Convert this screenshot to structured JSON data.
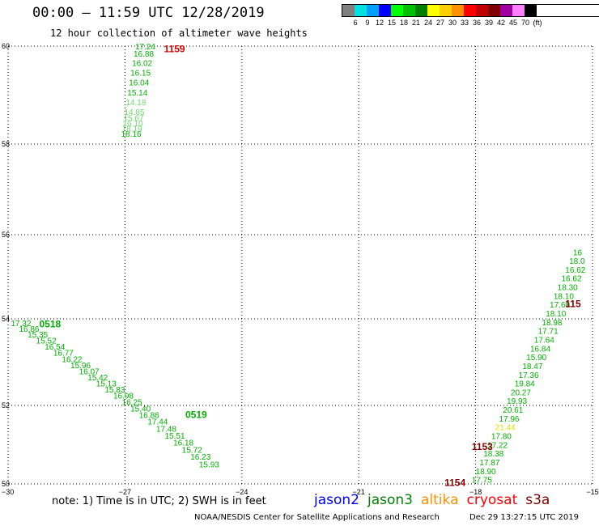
{
  "header": {
    "title": "00:00 – 11:59 UTC 12/28/2019",
    "subtitle": "12 hour collection of altimeter wave heights"
  },
  "legend": {
    "unit": "(ft)",
    "bins": [
      {
        "label": "3",
        "color": "#808080"
      },
      {
        "label": "6",
        "color": "#00e0e0"
      },
      {
        "label": "9",
        "color": "#00a0ff"
      },
      {
        "label": "12",
        "color": "#0000ff"
      },
      {
        "label": "15",
        "color": "#00ff00"
      },
      {
        "label": "18",
        "color": "#00c000"
      },
      {
        "label": "21",
        "color": "#008000"
      },
      {
        "label": "24",
        "color": "#ffff00"
      },
      {
        "label": "27",
        "color": "#ffd000"
      },
      {
        "label": "30",
        "color": "#ff9000"
      },
      {
        "label": "33",
        "color": "#ff0000"
      },
      {
        "label": "36",
        "color": "#c00000"
      },
      {
        "label": "39",
        "color": "#800000"
      },
      {
        "label": "42",
        "color": "#a000a0"
      },
      {
        "label": "45",
        "color": "#ff80ff"
      },
      {
        "label": "70",
        "color": "#000000"
      }
    ]
  },
  "map": {
    "lon_ticks": [
      "−30",
      "−27",
      "−24",
      "−21",
      "−18",
      "−15"
    ],
    "lat_ticks": [
      "50",
      "52",
      "54",
      "56",
      "58",
      "60"
    ],
    "lon_range": [
      -30,
      -15
    ],
    "lat_range": [
      50,
      60
    ],
    "track_colors": {
      "green": "#00b000",
      "light": "#70d870",
      "yellow": "#e0e000",
      "red": "#e00000",
      "dark": "#800000"
    },
    "tracks": [
      {
        "id": "track-north",
        "points": [
          {
            "lon": -27.1,
            "lat": 58.0,
            "value": "18.16",
            "color": "green"
          },
          {
            "lon": -27.08,
            "lat": 58.12,
            "value": "18.19",
            "color": "light"
          },
          {
            "lon": -27.06,
            "lat": 58.24,
            "value": "16.10",
            "color": "light"
          },
          {
            "lon": -27.04,
            "lat": 58.36,
            "value": "15.67",
            "color": "light"
          },
          {
            "lon": -27.02,
            "lat": 58.5,
            "value": "14.85",
            "color": "light"
          },
          {
            "lon": -26.98,
            "lat": 58.72,
            "value": "14.18",
            "color": "light"
          },
          {
            "lon": -26.94,
            "lat": 58.95,
            "value": "15.14",
            "color": "green"
          },
          {
            "lon": -26.9,
            "lat": 59.18,
            "value": "16.04",
            "color": "green"
          },
          {
            "lon": -26.86,
            "lat": 59.4,
            "value": "16.15",
            "color": "green"
          },
          {
            "lon": -26.82,
            "lat": 59.62,
            "value": "16.02",
            "color": "green"
          },
          {
            "lon": -26.78,
            "lat": 59.83,
            "value": "16.88",
            "color": "green"
          },
          {
            "lon": -26.74,
            "lat": 60.0,
            "value": "17.24",
            "color": "green"
          }
        ],
        "time_labels": [
          {
            "text": "1159",
            "lon": -26.0,
            "lat": 59.95,
            "color": "red"
          }
        ]
      },
      {
        "id": "track-southwest",
        "points": [
          {
            "lon": -29.93,
            "lat": 53.68,
            "value": "17.32",
            "color": "green"
          },
          {
            "lon": -29.72,
            "lat": 53.55,
            "value": "16.86",
            "color": "green"
          },
          {
            "lon": -29.5,
            "lat": 53.42,
            "value": "15.35",
            "color": "green"
          },
          {
            "lon": -29.28,
            "lat": 53.28,
            "value": "15.52",
            "color": "green"
          },
          {
            "lon": -29.06,
            "lat": 53.14,
            "value": "16.54",
            "color": "green"
          },
          {
            "lon": -28.84,
            "lat": 53.0,
            "value": "16.77",
            "color": "green"
          },
          {
            "lon": -28.62,
            "lat": 52.86,
            "value": "16.22",
            "color": "green"
          },
          {
            "lon": -28.4,
            "lat": 52.72,
            "value": "15.96",
            "color": "green"
          },
          {
            "lon": -28.18,
            "lat": 52.58,
            "value": "16.07",
            "color": "green"
          },
          {
            "lon": -27.96,
            "lat": 52.44,
            "value": "15.42",
            "color": "green"
          },
          {
            "lon": -27.74,
            "lat": 52.3,
            "value": "15.13",
            "color": "green"
          },
          {
            "lon": -27.52,
            "lat": 52.16,
            "value": "15.83",
            "color": "green"
          },
          {
            "lon": -27.3,
            "lat": 52.02,
            "value": "16.98",
            "color": "green"
          },
          {
            "lon": -27.08,
            "lat": 51.88,
            "value": "16.25",
            "color": "green"
          },
          {
            "lon": -26.86,
            "lat": 51.73,
            "value": "15.40",
            "color": "green"
          },
          {
            "lon": -26.64,
            "lat": 51.58,
            "value": "16.86",
            "color": "green"
          },
          {
            "lon": -26.42,
            "lat": 51.43,
            "value": "17.44",
            "color": "green"
          },
          {
            "lon": -26.2,
            "lat": 51.27,
            "value": "17.48",
            "color": "green"
          },
          {
            "lon": -25.98,
            "lat": 51.11,
            "value": "15.51",
            "color": "green"
          },
          {
            "lon": -25.76,
            "lat": 50.95,
            "value": "16.18",
            "color": "green"
          },
          {
            "lon": -25.54,
            "lat": 50.79,
            "value": "15.72",
            "color": "green"
          },
          {
            "lon": -25.32,
            "lat": 50.63,
            "value": "16.23",
            "color": "green"
          },
          {
            "lon": -25.1,
            "lat": 50.45,
            "value": "15.93",
            "color": "green"
          }
        ],
        "time_labels": [
          {
            "text": "0518",
            "lon": -29.2,
            "lat": 53.67,
            "color": "green"
          },
          {
            "text": "0519",
            "lon": -25.45,
            "lat": 51.6,
            "color": "green"
          }
        ]
      },
      {
        "id": "track-east",
        "points": [
          {
            "lon": -18.1,
            "lat": 50.1,
            "value": "17.75",
            "color": "green"
          },
          {
            "lon": -18.0,
            "lat": 50.3,
            "value": "18.90",
            "color": "green"
          },
          {
            "lon": -17.9,
            "lat": 50.5,
            "value": "17.87",
            "color": "green"
          },
          {
            "lon": -17.8,
            "lat": 50.7,
            "value": "18.38",
            "color": "green"
          },
          {
            "lon": -17.7,
            "lat": 50.9,
            "value": "17.22",
            "color": "green"
          },
          {
            "lon": -17.6,
            "lat": 51.1,
            "value": "17.80",
            "color": "green"
          },
          {
            "lon": -17.5,
            "lat": 51.3,
            "value": "21.44",
            "color": "yellow"
          },
          {
            "lon": -17.4,
            "lat": 51.5,
            "value": "17.96",
            "color": "green"
          },
          {
            "lon": -17.3,
            "lat": 51.7,
            "value": "20.61",
            "color": "green"
          },
          {
            "lon": -17.2,
            "lat": 51.9,
            "value": "19.93",
            "color": "green"
          },
          {
            "lon": -17.1,
            "lat": 52.1,
            "value": "20.27",
            "color": "green"
          },
          {
            "lon": -17.0,
            "lat": 52.3,
            "value": "19.84",
            "color": "green"
          },
          {
            "lon": -16.9,
            "lat": 52.5,
            "value": "17.36",
            "color": "green"
          },
          {
            "lon": -16.8,
            "lat": 52.7,
            "value": "18.47",
            "color": "green"
          },
          {
            "lon": -16.7,
            "lat": 52.9,
            "value": "15.90",
            "color": "green"
          },
          {
            "lon": -16.6,
            "lat": 53.1,
            "value": "16.84",
            "color": "green"
          },
          {
            "lon": -16.5,
            "lat": 53.3,
            "value": "17.64",
            "color": "green"
          },
          {
            "lon": -16.4,
            "lat": 53.5,
            "value": "17.71",
            "color": "green"
          },
          {
            "lon": -16.3,
            "lat": 53.7,
            "value": "18.98",
            "color": "green"
          },
          {
            "lon": -16.2,
            "lat": 53.9,
            "value": "18.10",
            "color": "green"
          },
          {
            "lon": -16.1,
            "lat": 54.1,
            "value": "17.60",
            "color": "green"
          },
          {
            "lon": -16.0,
            "lat": 54.3,
            "value": "18.10",
            "color": "green"
          },
          {
            "lon": -15.9,
            "lat": 54.5,
            "value": "18.30",
            "color": "green"
          },
          {
            "lon": -15.8,
            "lat": 54.7,
            "value": "16.62",
            "color": "green"
          },
          {
            "lon": -15.7,
            "lat": 54.9,
            "value": "16.62",
            "color": "green"
          },
          {
            "lon": -15.6,
            "lat": 55.1,
            "value": "18.0",
            "color": "green"
          },
          {
            "lon": -15.5,
            "lat": 55.3,
            "value": "16",
            "color": "green"
          }
        ],
        "time_labels": [
          {
            "text": "1153",
            "lon": -18.1,
            "lat": 50.87,
            "color": "dark"
          },
          {
            "text": "1154",
            "lon": -18.8,
            "lat": 50.05,
            "color": "dark"
          },
          {
            "text": "115",
            "lon": -15.7,
            "lat": 54.13,
            "color": "dark"
          }
        ]
      }
    ]
  },
  "footer": {
    "note": "note: 1) Time is in UTC; 2) SWH is in feet",
    "missions": [
      {
        "label": "jason2",
        "color": "#0000ff"
      },
      {
        "label": "jason3",
        "color": "#008000"
      },
      {
        "label": "altika",
        "color": "#ff9000"
      },
      {
        "label": "cryosat",
        "color": "#ff0000"
      },
      {
        "label": "s3a",
        "color": "#800000"
      }
    ],
    "credit": "NOAA/NESDIS Center for Satellite Applications and Research",
    "timestamp": "Dec 29 13:27:15 UTC 2019"
  }
}
